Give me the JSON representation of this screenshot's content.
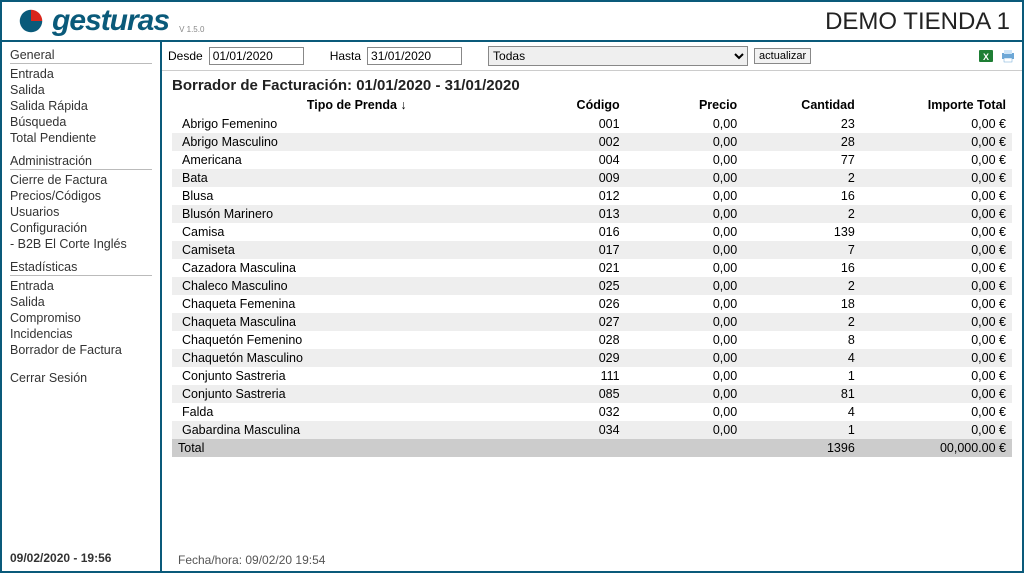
{
  "brand": "gesturas",
  "version": "V 1.5.0",
  "store_name": "DEMO TIENDA 1",
  "sidebar": {
    "sections": [
      {
        "title": "General",
        "items": [
          "Entrada",
          "Salida",
          "Salida Rápida",
          "Búsqueda",
          "Total Pendiente"
        ]
      },
      {
        "title": "Administración",
        "items": [
          "Cierre de Factura",
          "Precios/Códigos",
          "Usuarios",
          "Configuración",
          "- B2B El Corte Inglés"
        ]
      },
      {
        "title": "Estadísticas",
        "items": [
          "Entrada",
          "Salida",
          "Compromiso",
          "Incidencias",
          "Borrador de Factura"
        ]
      }
    ],
    "logout": "Cerrar Sesión",
    "datetime": "09/02/2020 - 19:56"
  },
  "filter": {
    "from_label": "Desde",
    "from_value": "01/01/2020",
    "to_label": "Hasta",
    "to_value": "31/01/2020",
    "select_value": "Todas",
    "update_label": "actualizar"
  },
  "report": {
    "title": "Borrador de Facturación: 01/01/2020 - 31/01/2020",
    "columns": {
      "type": "Tipo de Prenda ↓",
      "code": "Código",
      "price": "Precio",
      "qty": "Cantidad",
      "total": "Importe Total"
    },
    "rows": [
      {
        "name": "Abrigo Femenino",
        "code": "001",
        "price": "0,00",
        "qty": "23",
        "total": "0,00 €"
      },
      {
        "name": "Abrigo Masculino",
        "code": "002",
        "price": "0,00",
        "qty": "28",
        "total": "0,00 €"
      },
      {
        "name": "Americana",
        "code": "004",
        "price": "0,00",
        "qty": "77",
        "total": "0,00 €"
      },
      {
        "name": "Bata",
        "code": "009",
        "price": "0,00",
        "qty": "2",
        "total": "0,00 €"
      },
      {
        "name": "Blusa",
        "code": "012",
        "price": "0,00",
        "qty": "16",
        "total": "0,00 €"
      },
      {
        "name": "Blusón Marinero",
        "code": "013",
        "price": "0,00",
        "qty": "2",
        "total": "0,00 €"
      },
      {
        "name": "Camisa",
        "code": "016",
        "price": "0,00",
        "qty": "139",
        "total": "0,00 €"
      },
      {
        "name": "Camiseta",
        "code": "017",
        "price": "0,00",
        "qty": "7",
        "total": "0,00 €"
      },
      {
        "name": "Cazadora Masculina",
        "code": "021",
        "price": "0,00",
        "qty": "16",
        "total": "0,00 €"
      },
      {
        "name": "Chaleco Masculino",
        "code": "025",
        "price": "0,00",
        "qty": "2",
        "total": "0,00 €"
      },
      {
        "name": "Chaqueta Femenina",
        "code": "026",
        "price": "0,00",
        "qty": "18",
        "total": "0,00 €"
      },
      {
        "name": "Chaqueta Masculina",
        "code": "027",
        "price": "0,00",
        "qty": "2",
        "total": "0,00 €"
      },
      {
        "name": "Chaquetón Femenino",
        "code": "028",
        "price": "0,00",
        "qty": "8",
        "total": "0,00 €"
      },
      {
        "name": "Chaquetón Masculino",
        "code": "029",
        "price": "0,00",
        "qty": "4",
        "total": "0,00 €"
      },
      {
        "name": "Conjunto Sastreria",
        "code": "111",
        "price": "0,00",
        "qty": "1",
        "total": "0,00 €"
      },
      {
        "name": "Conjunto Sastreria",
        "code": "085",
        "price": "0,00",
        "qty": "81",
        "total": "0,00 €"
      },
      {
        "name": "Falda",
        "code": "032",
        "price": "0,00",
        "qty": "4",
        "total": "0,00 €"
      },
      {
        "name": "Gabardina Masculina",
        "code": "034",
        "price": "0,00",
        "qty": "1",
        "total": "0,00 €"
      }
    ],
    "footer": {
      "label": "Total",
      "qty": "1396",
      "total": "00,000.00 €"
    },
    "timestamp": "Fecha/hora: 09/02/20 19:54"
  },
  "colors": {
    "brand": "#0a5a7a",
    "row_alt": "#eeeeee",
    "footer_row": "#cccccc"
  }
}
